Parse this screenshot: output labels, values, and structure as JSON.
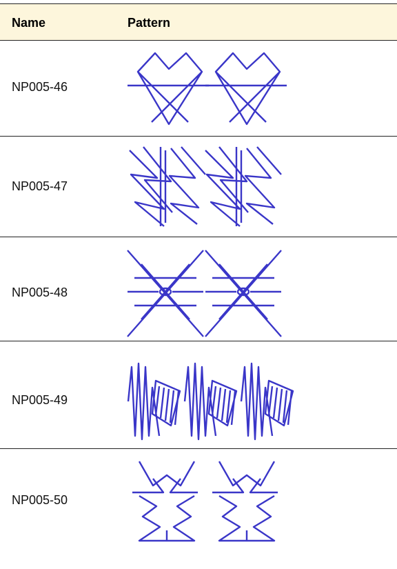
{
  "table": {
    "header": [
      "Name",
      "Pattern"
    ],
    "rows": [
      {
        "name": "NP005-46"
      },
      {
        "name": "NP005-47"
      },
      {
        "name": "NP005-48"
      },
      {
        "name": "NP005-49"
      },
      {
        "name": "NP005-50"
      }
    ]
  }
}
